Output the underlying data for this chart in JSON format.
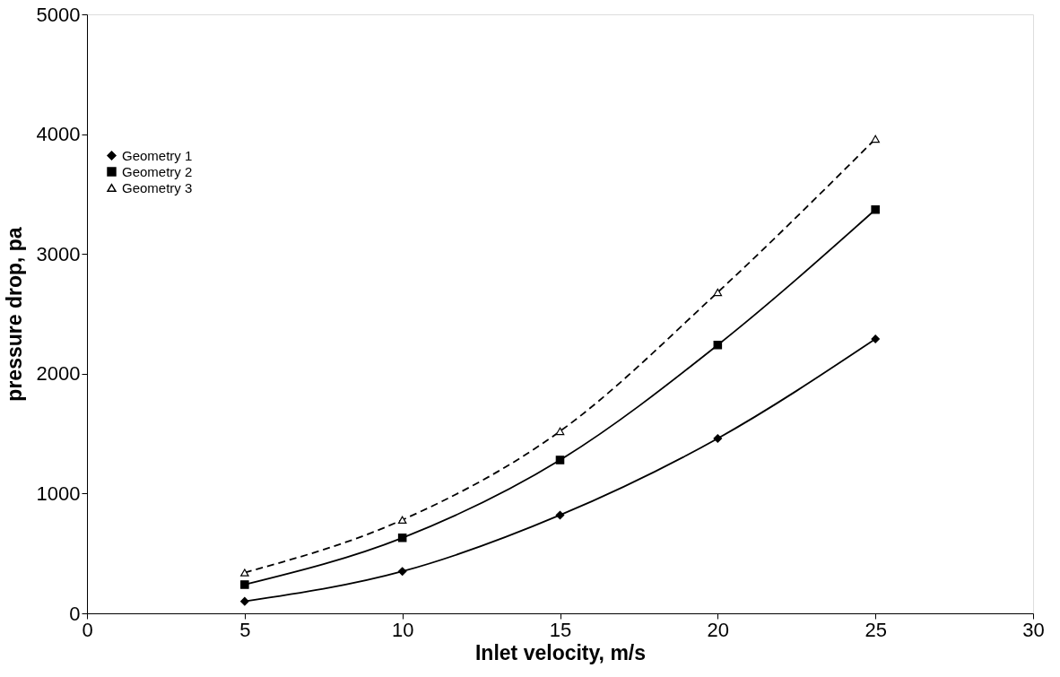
{
  "chart_data": {
    "type": "line",
    "xlabel": "Inlet velocity, m/s",
    "ylabel": "pressure drop, pa",
    "x": [
      5,
      10,
      15,
      20,
      25
    ],
    "series": [
      {
        "name": "Geometry 1",
        "color": "#000000",
        "marker": "diamond",
        "line_style": "solid",
        "values": [
          100,
          350,
          820,
          1460,
          2290
        ]
      },
      {
        "name": "Geometry 2",
        "color": "#000000",
        "marker": "square",
        "line_style": "solid",
        "values": [
          240,
          630,
          1280,
          2240,
          3370
        ]
      },
      {
        "name": "Geometry 3",
        "color": "#000000",
        "marker": "triangle",
        "line_style": "dashed",
        "values": [
          340,
          780,
          1520,
          2680,
          3960
        ]
      }
    ],
    "xlim": [
      0,
      30
    ],
    "xticks": [
      0,
      5,
      10,
      15,
      20,
      25,
      30
    ],
    "ylim": [
      0,
      5000
    ],
    "yticks": [
      0,
      1000,
      2000,
      3000,
      4000,
      5000
    ],
    "grid": false,
    "legend": "left"
  }
}
